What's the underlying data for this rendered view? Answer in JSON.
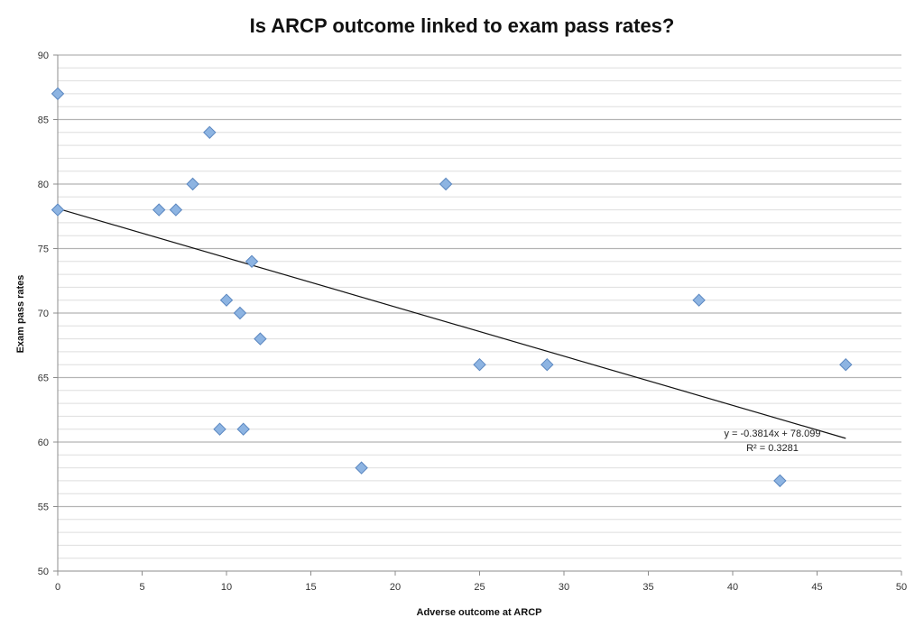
{
  "chart_data": {
    "type": "scatter",
    "title": "Is ARCP outcome linked to exam pass rates?",
    "xlabel": "Adverse outcome at ARCP",
    "ylabel": "Exam pass rates",
    "xlim": [
      0,
      50
    ],
    "ylim": [
      50,
      90
    ],
    "x_ticks": [
      0,
      5,
      10,
      15,
      20,
      25,
      30,
      35,
      40,
      45,
      50
    ],
    "y_ticks": [
      50,
      55,
      60,
      65,
      70,
      75,
      80,
      85,
      90
    ],
    "y_minor_step": 1,
    "grid": true,
    "legend": "none",
    "marker_color": "#8db4e2",
    "marker_edge_color": "#5a86bf",
    "points": [
      {
        "x": 0,
        "y": 87
      },
      {
        "x": 0,
        "y": 78
      },
      {
        "x": 6,
        "y": 78
      },
      {
        "x": 7,
        "y": 78
      },
      {
        "x": 8,
        "y": 80
      },
      {
        "x": 9,
        "y": 84
      },
      {
        "x": 9.6,
        "y": 61
      },
      {
        "x": 10,
        "y": 71
      },
      {
        "x": 10.8,
        "y": 70
      },
      {
        "x": 11,
        "y": 61
      },
      {
        "x": 11.5,
        "y": 74
      },
      {
        "x": 12,
        "y": 68
      },
      {
        "x": 18,
        "y": 58
      },
      {
        "x": 23,
        "y": 80
      },
      {
        "x": 25,
        "y": 66
      },
      {
        "x": 29,
        "y": 66
      },
      {
        "x": 38,
        "y": 71
      },
      {
        "x": 42.8,
        "y": 57
      },
      {
        "x": 46.7,
        "y": 66
      }
    ],
    "trendline": {
      "slope": -0.3814,
      "intercept": 78.099,
      "x_range": [
        0,
        46.7
      ],
      "equation_label": "y = -0.3814x + 78.099",
      "r2_label": "R² = 0.3281"
    }
  }
}
